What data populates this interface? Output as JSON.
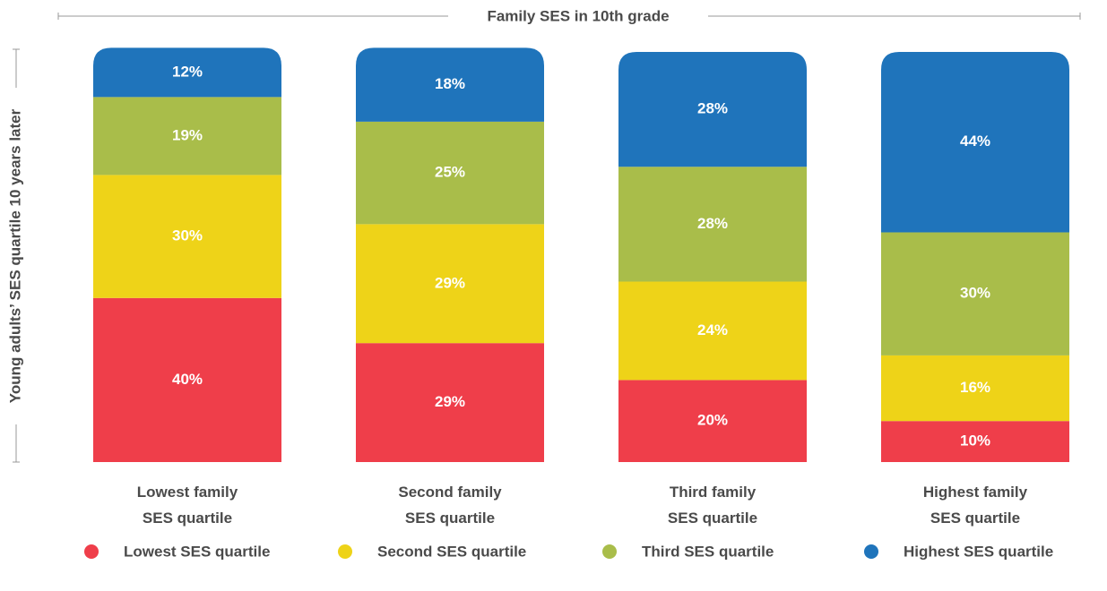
{
  "chart_data": {
    "type": "stacked_bar",
    "title": "Family SES in 10th grade",
    "y_label": "Young adults’ SES quartile 10 years later",
    "categories": [
      "Lowest family SES quartile",
      "Second family SES quartile",
      "Third family SES quartile",
      "Highest family SES quartile"
    ],
    "series": [
      {
        "name": "Lowest SES quartile",
        "color": "#ef3e4a",
        "values": [
          40,
          29,
          20,
          10
        ],
        "value_labels": [
          "40%",
          "29%",
          "20%",
          "10%"
        ]
      },
      {
        "name": "Second SES quartile",
        "color": "#eed318",
        "values": [
          30,
          29,
          24,
          16
        ],
        "value_labels": [
          "30%",
          "29%",
          "24%",
          "16%"
        ]
      },
      {
        "name": "Third SES quartile",
        "color": "#a9bd4a",
        "values": [
          19,
          25,
          28,
          30
        ],
        "value_labels": [
          "19%",
          "25%",
          "28%",
          "30%"
        ]
      },
      {
        "name": "Highest SES quartile",
        "color": "#1f74bb",
        "values": [
          12,
          18,
          28,
          44
        ],
        "value_labels": [
          "12%",
          "18%",
          "28%",
          "44%"
        ]
      }
    ],
    "legend": "bottom"
  }
}
